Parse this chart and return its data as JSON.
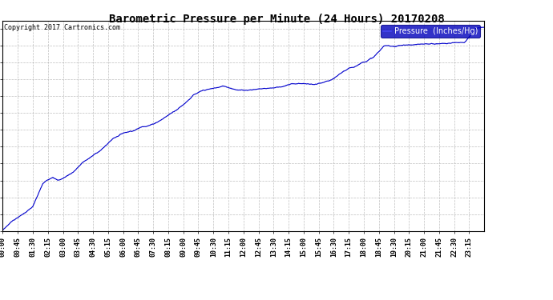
{
  "title": "Barometric Pressure per Minute (24 Hours) 20170208",
  "copyright": "Copyright 2017 Cartronics.com",
  "legend_label": "Pressure  (Inches/Hg)",
  "line_color": "#0000cc",
  "legend_bg": "#0000bb",
  "legend_text_color": "#ffffff",
  "background_color": "#ffffff",
  "grid_color": "#aaaaaa",
  "ylim_min": 29.615,
  "ylim_max": 30.04,
  "yticks": [
    29.615,
    29.649,
    29.683,
    29.717,
    29.752,
    29.786,
    29.82,
    29.854,
    29.888,
    29.922,
    29.957,
    29.991,
    30.025
  ],
  "xtick_interval_minutes": 45,
  "keyframes_minutes": [
    0,
    30,
    60,
    90,
    120,
    150,
    165,
    180,
    210,
    240,
    270,
    300,
    330,
    360,
    390,
    420,
    450,
    480,
    510,
    540,
    570,
    600,
    630,
    660,
    690,
    720,
    750,
    780,
    810,
    840,
    870,
    900,
    930,
    960,
    990,
    1020,
    1050,
    1080,
    1110,
    1140,
    1170,
    1200,
    1230,
    1260,
    1290,
    1320,
    1350,
    1380,
    1415
  ],
  "keyframes_pressure": [
    29.617,
    29.637,
    29.65,
    29.665,
    29.71,
    29.725,
    29.718,
    29.722,
    29.735,
    29.755,
    29.768,
    29.783,
    29.803,
    29.815,
    29.821,
    29.83,
    29.836,
    29.848,
    29.862,
    29.878,
    29.898,
    29.905,
    29.908,
    29.912,
    29.908,
    29.905,
    29.908,
    29.91,
    29.912,
    29.916,
    29.92,
    29.921,
    29.918,
    29.92,
    29.925,
    29.94,
    29.948,
    29.96,
    29.97,
    29.991,
    29.991,
    29.994,
    29.994,
    29.993,
    29.994,
    29.995,
    29.996,
    29.998,
    30.027
  ]
}
